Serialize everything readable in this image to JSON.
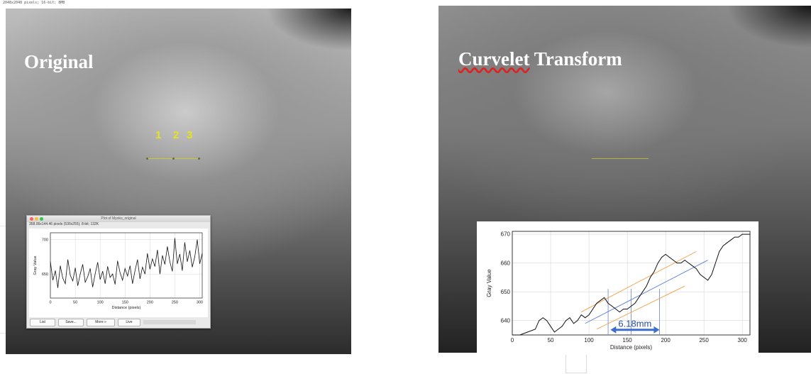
{
  "caption": "2048x2048 pixels; 16-bit; 8MB",
  "left_panel": {
    "title": "Original",
    "markers": [
      "1",
      "2",
      "3"
    ]
  },
  "profile_window": {
    "title": "Plot of Myoko_original",
    "info": "358.06x144.46 pixels (530x255); 8-bit; 132K",
    "buttons": [
      "List",
      "Save...",
      "More »",
      "Live"
    ],
    "traffic_colors": [
      "#fc605c",
      "#fdbc40",
      "#34c84a"
    ],
    "chart_data": {
      "type": "line",
      "xlabel": "Distance (pixels)",
      "ylabel": "Gray Value",
      "xlim": [
        0,
        305
      ],
      "ylim": [
        615,
        710
      ],
      "xticks": [
        0,
        50,
        100,
        150,
        200,
        250,
        300
      ],
      "yticks": [
        650,
        700
      ],
      "grid": true,
      "x": [
        0,
        5,
        10,
        15,
        20,
        25,
        30,
        35,
        40,
        45,
        50,
        55,
        60,
        65,
        70,
        75,
        80,
        85,
        90,
        95,
        100,
        105,
        110,
        115,
        120,
        125,
        130,
        135,
        140,
        145,
        150,
        155,
        160,
        165,
        170,
        175,
        180,
        185,
        190,
        195,
        200,
        205,
        210,
        215,
        220,
        225,
        230,
        235,
        240,
        245,
        250,
        255,
        260,
        265,
        270,
        275,
        280,
        285,
        290,
        295,
        300,
        305
      ],
      "values": [
        668,
        641,
        655,
        630,
        662,
        644,
        636,
        671,
        648,
        640,
        659,
        633,
        650,
        664,
        638,
        646,
        658,
        631,
        650,
        667,
        642,
        654,
        636,
        661,
        645,
        650,
        635,
        669,
        652,
        641,
        658,
        647,
        662,
        636,
        655,
        671,
        643,
        660,
        650,
        680,
        657,
        672,
        661,
        685,
        650,
        677,
        664,
        690,
        668,
        654,
        702,
        665,
        679,
        655,
        696,
        668,
        684,
        660,
        675,
        700,
        665,
        680
      ]
    }
  },
  "right_panel": {
    "title": "Curvelet Transform"
  },
  "right_chart": {
    "measure_label": "6.18mm",
    "chart_data": {
      "type": "line",
      "xlabel": "Distance (pixels)",
      "ylabel": "Gray Value",
      "xlim": [
        0,
        310
      ],
      "ylim": [
        635,
        671
      ],
      "xticks": [
        0,
        50,
        100,
        150,
        200,
        250,
        300
      ],
      "yticks": [
        640,
        650,
        660,
        670
      ],
      "grid": true,
      "x": [
        0,
        10,
        20,
        30,
        35,
        40,
        45,
        50,
        55,
        60,
        65,
        70,
        75,
        80,
        85,
        90,
        95,
        100,
        105,
        110,
        115,
        120,
        125,
        130,
        135,
        140,
        145,
        150,
        155,
        160,
        165,
        170,
        175,
        180,
        185,
        190,
        195,
        200,
        205,
        210,
        215,
        220,
        225,
        230,
        235,
        240,
        245,
        250,
        255,
        260,
        265,
        270,
        275,
        280,
        285,
        290,
        295,
        300,
        305,
        310
      ],
      "values": [
        635,
        635,
        636,
        637,
        640,
        641,
        640,
        638,
        636,
        637,
        638,
        640,
        641,
        639,
        640,
        642,
        641,
        642,
        644,
        646,
        647,
        648,
        646,
        645,
        644,
        643,
        644,
        644,
        645,
        646,
        648,
        650,
        652,
        655,
        657,
        660,
        662,
        663,
        662,
        661,
        660,
        660,
        661,
        660,
        659,
        658,
        656,
        655,
        654,
        656,
        660,
        664,
        666,
        667,
        668,
        669,
        669,
        670,
        670,
        670
      ],
      "fit_lines": [
        {
          "name": "upper",
          "color": "#f0a04b",
          "x": [
            90,
            240
          ],
          "values": [
            643,
            664
          ]
        },
        {
          "name": "center",
          "color": "#5b7fd6",
          "x": [
            95,
            255
          ],
          "values": [
            639,
            661
          ]
        },
        {
          "name": "lower",
          "color": "#f0a04b",
          "x": [
            110,
            225
          ],
          "values": [
            637,
            652
          ]
        }
      ],
      "vlines": {
        "color": "#7d8fd0",
        "x": [
          125,
          155,
          192
        ]
      },
      "measure": {
        "x_start": 128,
        "x_end": 192,
        "value": 642
      }
    }
  }
}
